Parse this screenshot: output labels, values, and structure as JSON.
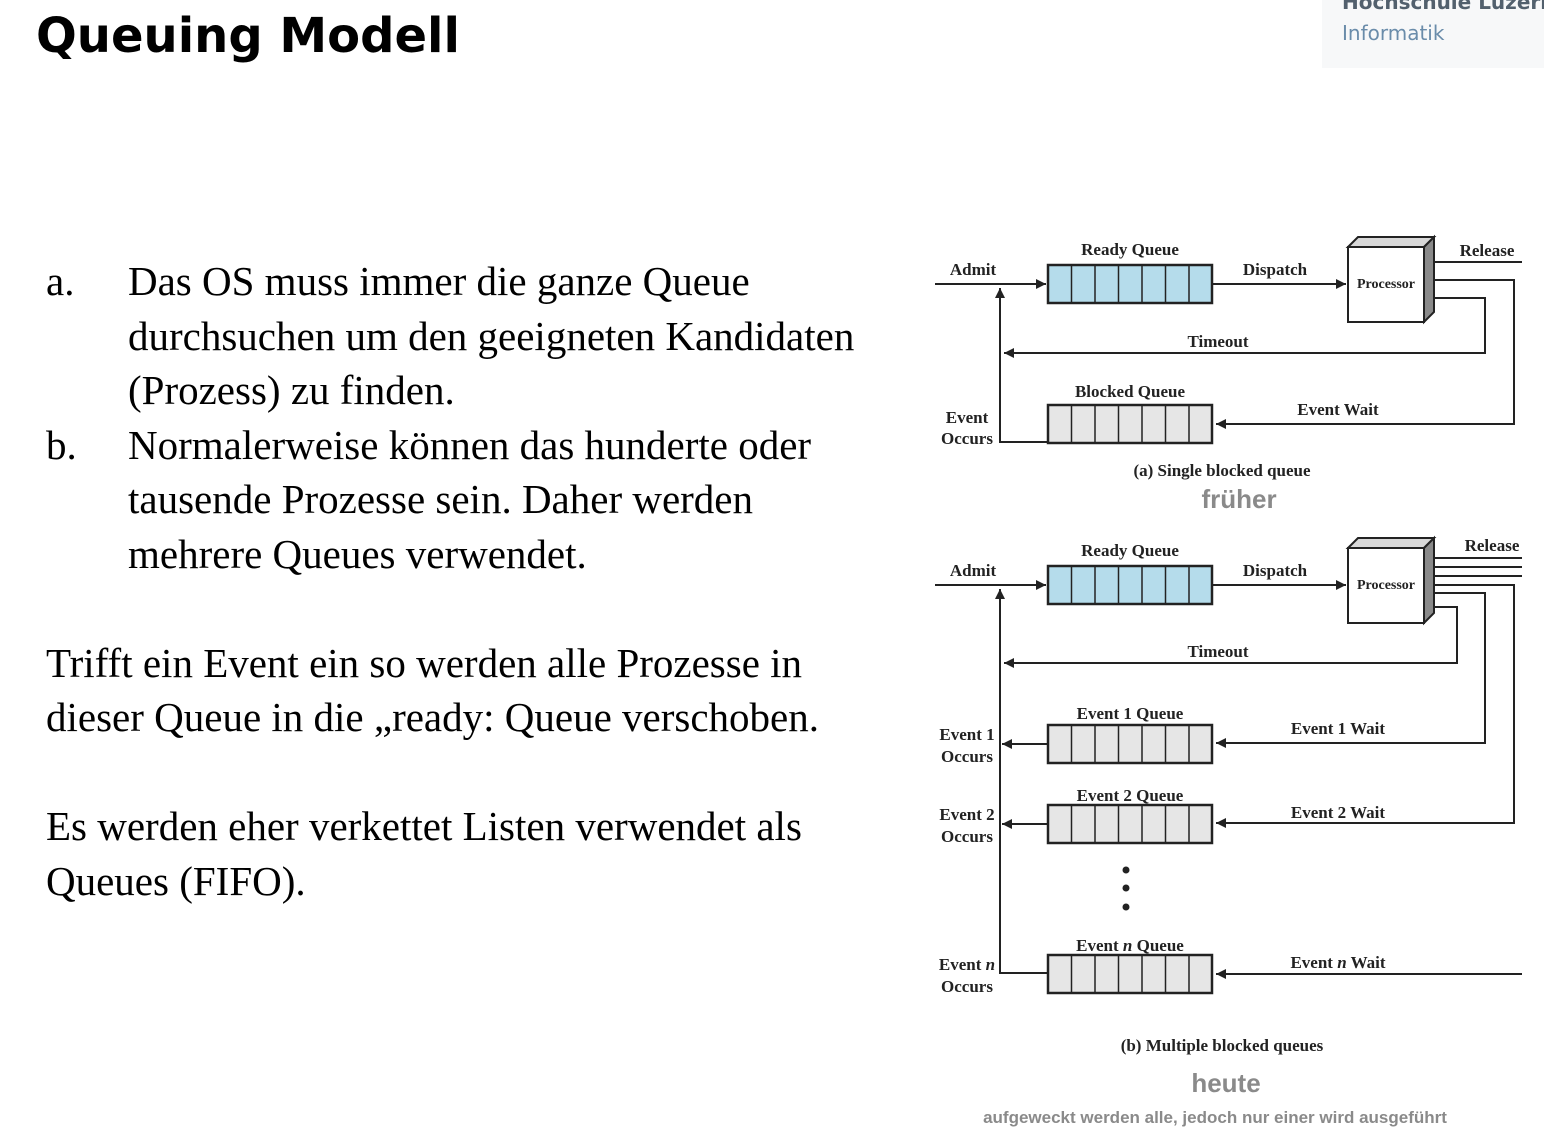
{
  "header": {
    "title": "Queuing Modell",
    "logo": {
      "line1": "Hochschule Luzern",
      "line2": "Informatik"
    }
  },
  "content": {
    "list": [
      {
        "marker": "a.",
        "text": "Das OS muss immer die ganze Queue durchsuchen um den geeigneten Kandidaten (Prozess) zu finden."
      },
      {
        "marker": "b.",
        "text": "Normalerweise können das hunderte oder tausende Prozesse sein. Daher werden mehrere Queues verwendet."
      }
    ],
    "paragraph1": "Trifft ein Event ein so werden alle Prozesse in dieser Queue in die „ready: Queue verschoben.",
    "paragraph2": "Es werden eher verkettet Listen verwendet als Queues (FIFO)."
  },
  "diagram_a": {
    "ready_queue": "Ready Queue",
    "admit": "Admit",
    "dispatch": "Dispatch",
    "processor": "Processor",
    "release": "Release",
    "timeout": "Timeout",
    "blocked_queue": "Blocked Queue",
    "event_wait": "Event Wait",
    "event_occurs_1": "Event",
    "event_occurs_2": "Occurs",
    "caption": "(a) Single blocked queue",
    "note": "früher"
  },
  "diagram_b": {
    "ready_queue": "Ready Queue",
    "admit": "Admit",
    "dispatch": "Dispatch",
    "processor": "Processor",
    "release": "Release",
    "timeout": "Timeout",
    "event1_queue": "Event 1 Queue",
    "event1_wait": "Event 1 Wait",
    "event1_occurs_1": "Event 1",
    "event1_occurs_2": "Occurs",
    "event2_queue": "Event 2 Queue",
    "event2_wait": "Event 2 Wait",
    "event2_occurs_1": "Event 2",
    "event2_occurs_2": "Occurs",
    "eventn_queue_pre": "Event ",
    "eventn_queue_n": "n",
    "eventn_queue_post": " Queue",
    "eventn_wait_pre": "Event ",
    "eventn_wait_n": "n",
    "eventn_wait_post": " Wait",
    "eventn_occurs_pre": "Event ",
    "eventn_occurs_n": "n",
    "eventn_occurs_2": "Occurs",
    "caption": "(b) Multiple blocked queues",
    "note": "heute",
    "footnote": "aufgeweckt werden alle, jedoch nur einer wird ausgeführt"
  },
  "colors": {
    "ready_queue_fill": "#b5dceb",
    "blocked_queue_fill": "#e6e6e6",
    "note_gray": "#8a8a8a",
    "logo_gray": "#52606d",
    "logo_blue": "#6a8caa"
  }
}
